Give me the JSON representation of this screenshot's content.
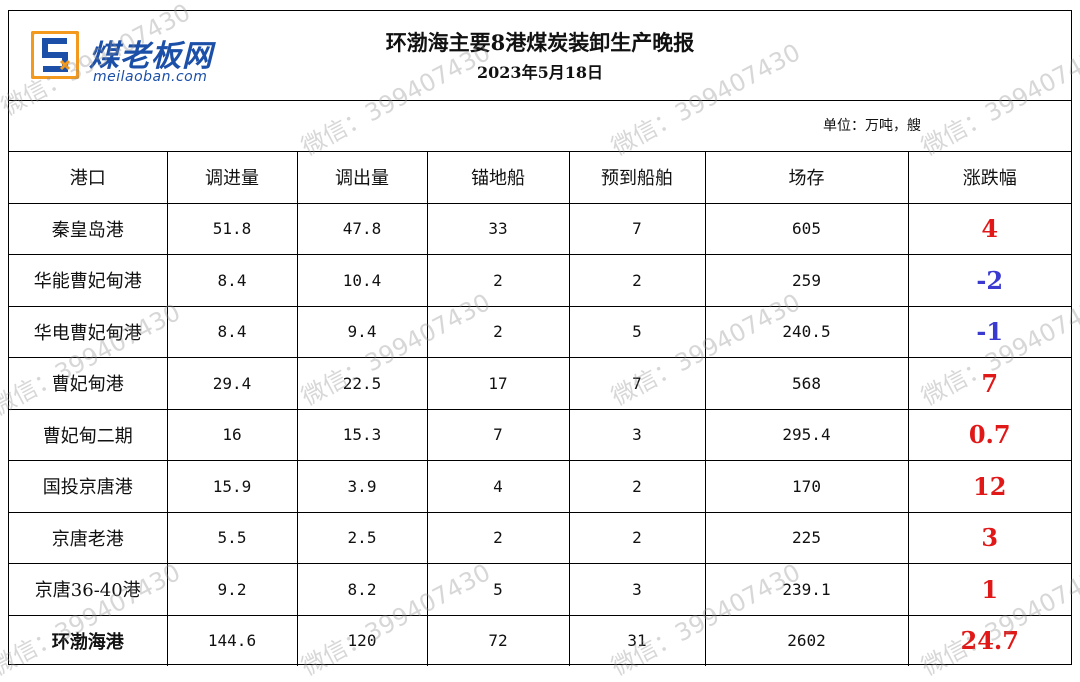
{
  "logo": {
    "brand": "煤老板网",
    "domain": "meilaoban.com"
  },
  "title": "环渤海主要8港煤炭装卸生产晚报",
  "date": "2023年5月18日",
  "unit": "单位：万吨，艘",
  "colors": {
    "up": "#e01818",
    "down": "#3a3ad0",
    "brand": "#1c4fa8",
    "logo_orange": "#f39a1e"
  },
  "table": {
    "headers": [
      "港口",
      "调进量",
      "调出量",
      "锚地船",
      "预到船舶",
      "场存",
      "涨跌幅"
    ],
    "rows": [
      {
        "port": "秦皇岛港",
        "in": "51.8",
        "out": "47.8",
        "anchor": "33",
        "expected": "7",
        "stock": "605",
        "change": "4",
        "dir": "up"
      },
      {
        "port": "华能曹妃甸港",
        "in": "8.4",
        "out": "10.4",
        "anchor": "2",
        "expected": "2",
        "stock": "259",
        "change": "-2",
        "dir": "down"
      },
      {
        "port": "华电曹妃甸港",
        "in": "8.4",
        "out": "9.4",
        "anchor": "2",
        "expected": "5",
        "stock": "240.5",
        "change": "-1",
        "dir": "down"
      },
      {
        "port": "曹妃甸港",
        "in": "29.4",
        "out": "22.5",
        "anchor": "17",
        "expected": "7",
        "stock": "568",
        "change": "7",
        "dir": "up"
      },
      {
        "port": "曹妃甸二期",
        "in": "16",
        "out": "15.3",
        "anchor": "7",
        "expected": "3",
        "stock": "295.4",
        "change": "0.7",
        "dir": "up"
      },
      {
        "port": "国投京唐港",
        "in": "15.9",
        "out": "3.9",
        "anchor": "4",
        "expected": "2",
        "stock": "170",
        "change": "12",
        "dir": "up"
      },
      {
        "port": "京唐老港",
        "in": "5.5",
        "out": "2.5",
        "anchor": "2",
        "expected": "2",
        "stock": "225",
        "change": "3",
        "dir": "up"
      },
      {
        "port": "京唐36-40港",
        "in": "9.2",
        "out": "8.2",
        "anchor": "5",
        "expected": "3",
        "stock": "239.1",
        "change": "1",
        "dir": "up"
      },
      {
        "port": "环渤海港",
        "in": "144.6",
        "out": "120",
        "anchor": "72",
        "expected": "31",
        "stock": "2602",
        "change": "24.7",
        "dir": "up",
        "total": true
      }
    ]
  },
  "watermark": {
    "text": "微信：399407430"
  }
}
